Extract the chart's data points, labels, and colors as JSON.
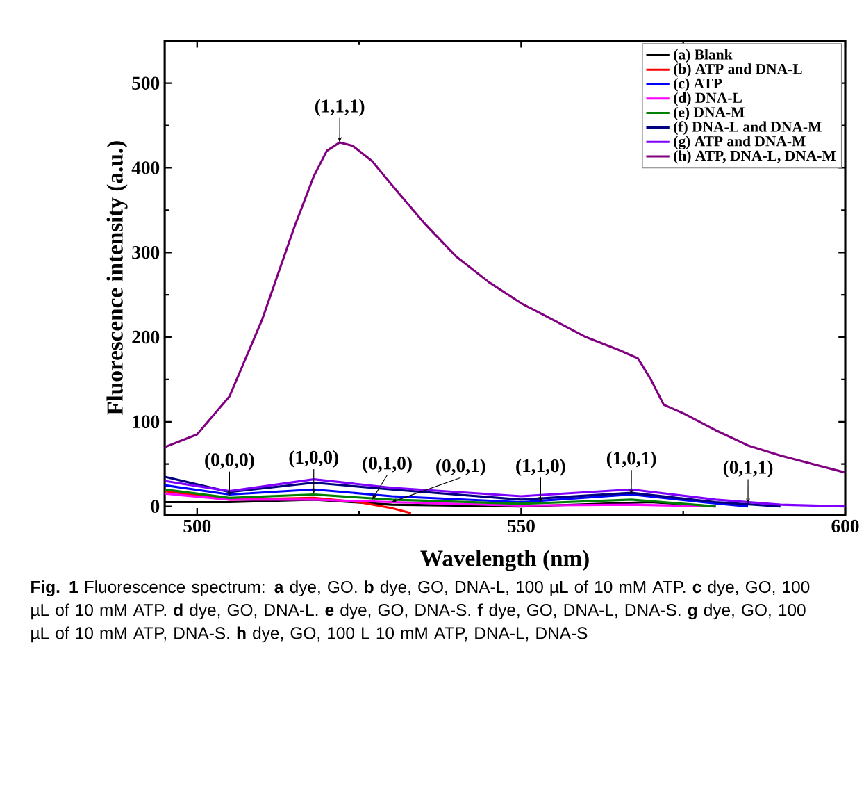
{
  "chart_data": {
    "type": "line",
    "xlabel": "Wavelength (nm)",
    "ylabel": "Fluorescence intensity (a.u.)",
    "xlim": [
      495,
      600
    ],
    "xticks": [
      500,
      550,
      600
    ],
    "ylim": [
      -10,
      550
    ],
    "yticks": [
      0,
      100,
      200,
      300,
      400,
      500
    ],
    "legend": "top right",
    "grid": false,
    "marker": "none",
    "line_style": "solid",
    "series": [
      {
        "name": "(a) Blank",
        "color": "#000000",
        "x": [
          495,
          505,
          518,
          530,
          550,
          570,
          580
        ],
        "values": [
          5,
          5,
          8,
          2,
          0,
          5,
          0
        ]
      },
      {
        "name": "(b) ATP and DNA-L",
        "color": "#ff0000",
        "x": [
          495,
          505,
          518,
          525,
          530,
          533
        ],
        "values": [
          18,
          8,
          10,
          5,
          -2,
          -8
        ]
      },
      {
        "name": "(c) ATP",
        "color": "#0000ff",
        "x": [
          495,
          505,
          518,
          530,
          550,
          567,
          578,
          585
        ],
        "values": [
          25,
          14,
          20,
          12,
          5,
          14,
          5,
          0
        ]
      },
      {
        "name": "(d) DNA-L",
        "color": "#ff00ff",
        "x": [
          495,
          505,
          518,
          530,
          550,
          567,
          580
        ],
        "values": [
          15,
          8,
          8,
          5,
          1,
          2,
          0
        ]
      },
      {
        "name": "(e) DNA-M",
        "color": "#008000",
        "x": [
          495,
          505,
          518,
          530,
          550,
          567,
          580
        ],
        "values": [
          20,
          10,
          14,
          8,
          3,
          8,
          0
        ]
      },
      {
        "name": "(f)  DNA-L and DNA-M",
        "color": "#000080",
        "x": [
          495,
          505,
          518,
          530,
          550,
          567,
          580,
          590
        ],
        "values": [
          35,
          17,
          28,
          20,
          8,
          16,
          5,
          0
        ]
      },
      {
        "name": "(g)  ATP and DNA-M",
        "color": "#8000ff",
        "x": [
          495,
          505,
          518,
          530,
          550,
          567,
          580,
          590,
          600
        ],
        "values": [
          30,
          18,
          32,
          22,
          12,
          20,
          8,
          2,
          0
        ]
      },
      {
        "name": "(h) ATP, DNA-L, DNA-M",
        "color": "#800080",
        "x": [
          495,
          500,
          505,
          510,
          515,
          518,
          520,
          522,
          524,
          527,
          530,
          535,
          540,
          545,
          550,
          555,
          560,
          565,
          568,
          570,
          572,
          575,
          580,
          585,
          590,
          595,
          600
        ],
        "values": [
          70,
          85,
          130,
          220,
          330,
          390,
          420,
          430,
          426,
          408,
          380,
          335,
          295,
          265,
          240,
          220,
          200,
          185,
          175,
          150,
          120,
          110,
          90,
          72,
          60,
          50,
          40
        ]
      }
    ],
    "annotations": [
      {
        "text": "(1,1,1)",
        "x": 522,
        "y": 430
      },
      {
        "text": "(0,0,0)",
        "x": 505,
        "y": 12
      },
      {
        "text": "(1,0,0)",
        "x": 518,
        "y": 15
      },
      {
        "text": "(0,1,0)",
        "x": 527,
        "y": 8
      },
      {
        "text": "(0,0,1)",
        "x": 530,
        "y": 5
      },
      {
        "text": "(1,1,0)",
        "x": 553,
        "y": 5
      },
      {
        "text": "(1,0,1)",
        "x": 567,
        "y": 14
      },
      {
        "text": "(0,1,1)",
        "x": 585,
        "y": 3
      },
      "**Fig. 1** Fluorescence spectrum: **a** dye, GO. **b** dye, GO, DNA-L, 100 µL of 10 mM ATP. **c** dye, GO, 100 µL of 10 mM ATP. **d** dye, GO, DNA-L. **e** dye, GO, DNA-S. **f** dye, GO, DNA-L, DNA-S. **g** dye, GO, 100 µL of 10 mM ATP, DNA-S. **h** dye, GO, 100 L 10 mM ATP, DNA-L, DNA-S"
    ]
  }
}
